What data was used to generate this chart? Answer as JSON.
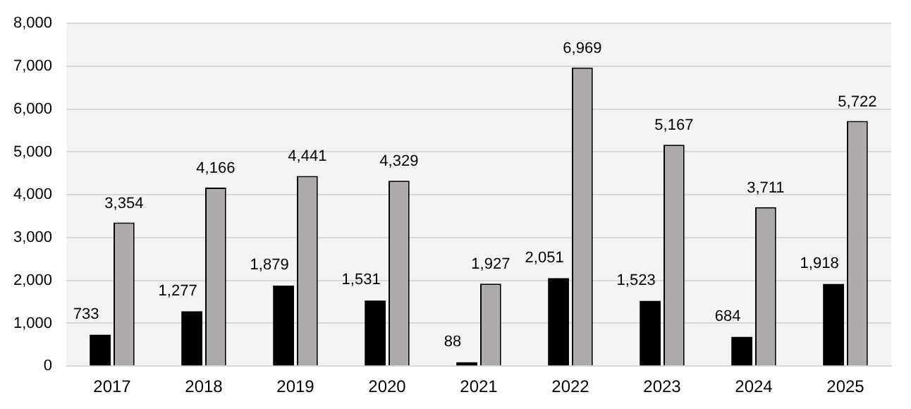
{
  "chart_data": {
    "type": "bar",
    "categories": [
      "2017",
      "2018",
      "2019",
      "2020",
      "2021",
      "2022",
      "2023",
      "2024",
      "2025"
    ],
    "series": [
      {
        "color": "#000000",
        "values": [
          733,
          1277,
          1879,
          1531,
          88,
          2051,
          1523,
          684,
          1918
        ],
        "value_labels": [
          "733",
          "1,277",
          "1,879",
          "1,531",
          "88",
          "2,051",
          "1,523",
          "684",
          "1,918"
        ]
      },
      {
        "color": "#aeaaaa",
        "values": [
          3354,
          4166,
          4441,
          4329,
          1927,
          6969,
          5167,
          3711,
          5722
        ],
        "value_labels": [
          "3,354",
          "4,166",
          "4,441",
          "4,329",
          "1,927",
          "6,969",
          "5,167",
          "3,711",
          "5,722"
        ]
      }
    ],
    "ylim": [
      0,
      8000
    ],
    "yticks": [
      {
        "value": 0,
        "label": "0"
      },
      {
        "value": 1000,
        "label": "1,000"
      },
      {
        "value": 2000,
        "label": "2,000"
      },
      {
        "value": 3000,
        "label": "3,000"
      },
      {
        "value": 4000,
        "label": "4,000"
      },
      {
        "value": 5000,
        "label": "5,000"
      },
      {
        "value": 6000,
        "label": "6,000"
      },
      {
        "value": 7000,
        "label": "7,000"
      },
      {
        "value": 8000,
        "label": "8,000"
      }
    ],
    "grid": "y",
    "legend": false
  }
}
